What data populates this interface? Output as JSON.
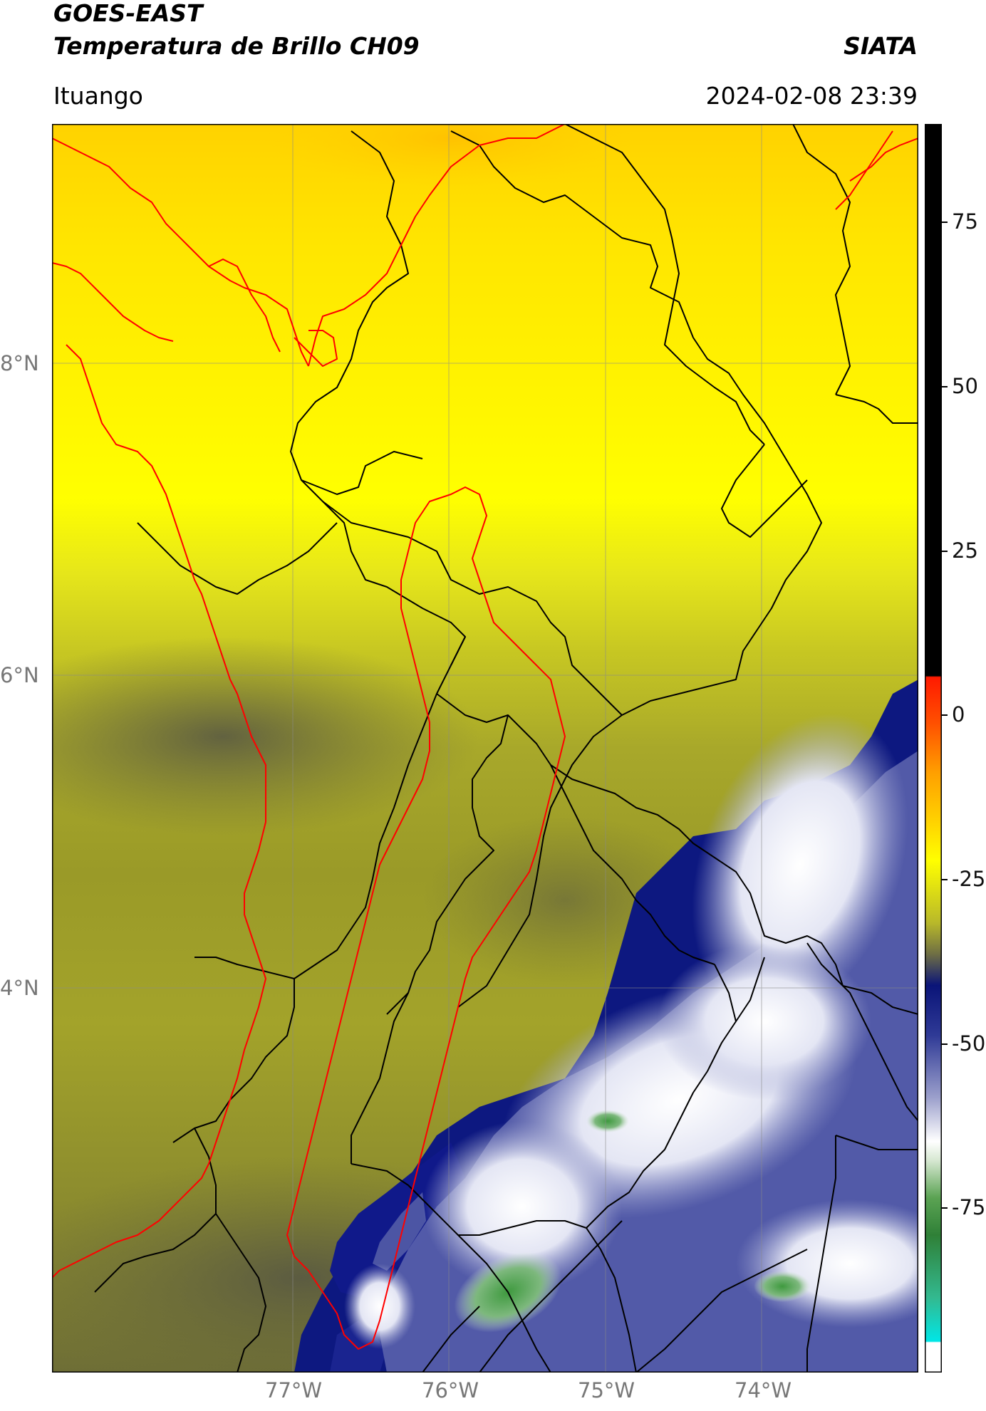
{
  "header": {
    "satellite": "GOES-EAST",
    "product": "Temperatura de Brillo CH09",
    "organization": "SIATA",
    "location": "Ituango",
    "datetime": "2024-02-08 23:39"
  },
  "map": {
    "lat_ticks": [
      "8°N",
      "6°N",
      "4°N"
    ],
    "lon_ticks": [
      "77°W",
      "76°W",
      "75°W",
      "74°W"
    ],
    "lat_range": [
      1.6,
      9.55
    ],
    "lon_range": [
      -78.55,
      -73.0
    ],
    "boundary_colors": {
      "coastline": "#ff0000",
      "basin": "#ff0000",
      "departments": "#000000"
    }
  },
  "colorbar": {
    "ticks": [
      "75",
      "50",
      "25",
      "0",
      "-25",
      "-50",
      "-75"
    ],
    "tick_values": [
      75,
      50,
      25,
      0,
      -25,
      -50,
      -75
    ],
    "range": [
      -100,
      90
    ],
    "colors": {
      "top": "#000000",
      "warm": "#ff0000",
      "orange": "#ffa000",
      "yellow": "#ffff00",
      "olive": "#8a8a1e",
      "navy": "#0a1478",
      "white": "#ffffff",
      "green": "#2d8a2d",
      "cyan": "#00e6e6"
    }
  }
}
